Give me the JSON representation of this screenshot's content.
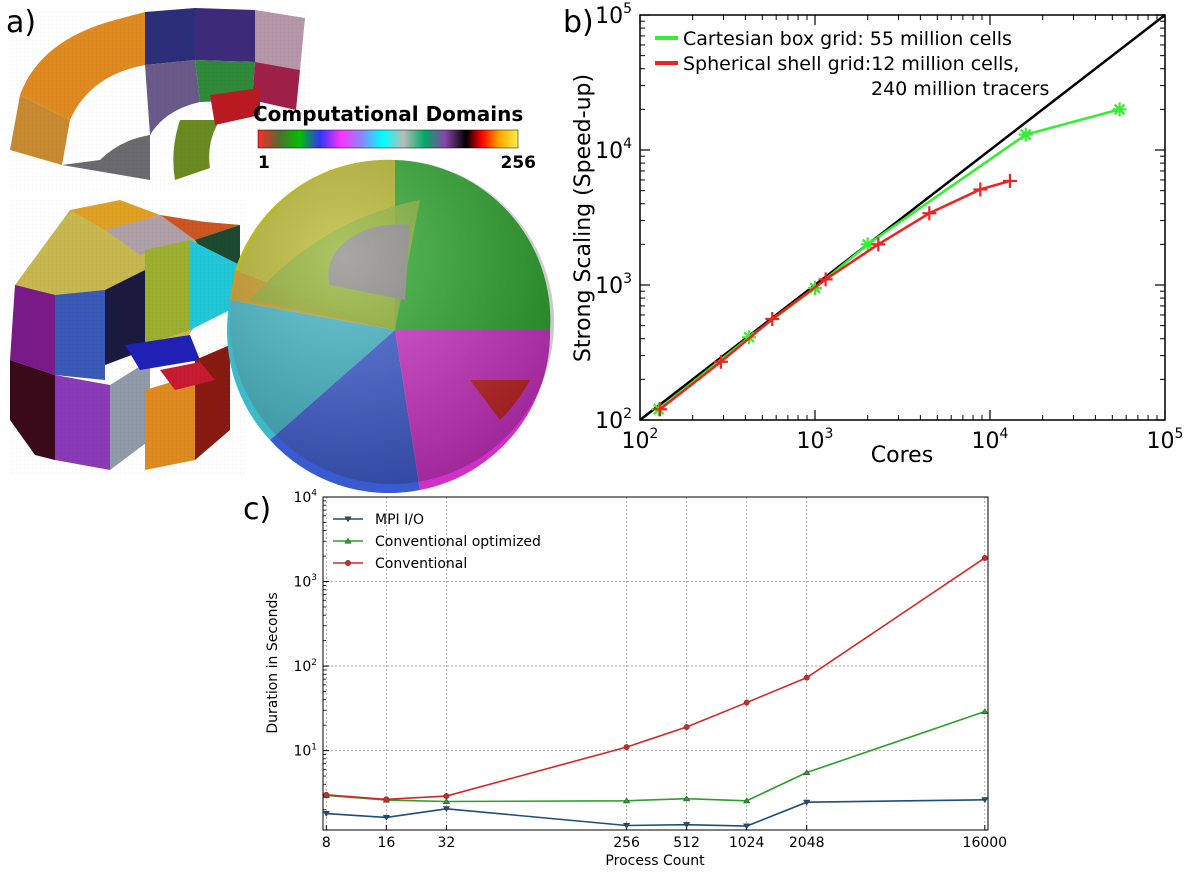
{
  "panels": {
    "a": "a)",
    "b": "b)",
    "c": "c)"
  },
  "domains_colorbar": {
    "title": "Computational Domains",
    "min_label": "1",
    "max_label": "256"
  },
  "chart_data": [
    {
      "type": "line",
      "panel": "b",
      "xlabel": "Cores",
      "ylabel": "Strong Scaling (Speed-up)",
      "xscale": "log",
      "yscale": "log",
      "xlim": [
        100,
        100000
      ],
      "ylim": [
        100,
        100000
      ],
      "xticks": [
        {
          "value": 100,
          "base": "10",
          "exp": "2"
        },
        {
          "value": 1000,
          "base": "10",
          "exp": "3"
        },
        {
          "value": 10000,
          "base": "10",
          "exp": "4"
        },
        {
          "value": 100000,
          "base": "10",
          "exp": "5"
        }
      ],
      "yticks": [
        {
          "value": 100,
          "base": "10",
          "exp": "2"
        },
        {
          "value": 1000,
          "base": "10",
          "exp": "3"
        },
        {
          "value": 10000,
          "base": "10",
          "exp": "4"
        },
        {
          "value": 100000,
          "base": "10",
          "exp": "5"
        }
      ],
      "legend_position": "top-left",
      "ideal_line": {
        "x": [
          100,
          100000
        ],
        "y": [
          100,
          100000
        ],
        "color": "#000000"
      },
      "series": [
        {
          "name": "Cartesian box grid: 55 million cells",
          "legend_lines": [
            "Cartesian box grid: 55 million cells"
          ],
          "color": "#33ee33",
          "marker": "asterisk",
          "x": [
            128,
            420,
            1000,
            2000,
            16000,
            55000
          ],
          "y": [
            120,
            410,
            950,
            2000,
            13000,
            20000
          ]
        },
        {
          "name": "Spherical shell grid: 12 million cells, 240 million tracers",
          "legend_lines": [
            "Spherical shell grid:12 million cells,",
            "240 million tracers"
          ],
          "color": "#ee2222",
          "marker": "plus",
          "x": [
            130,
            290,
            570,
            1150,
            2300,
            4500,
            8800,
            13000
          ],
          "y": [
            120,
            270,
            560,
            1100,
            2000,
            3400,
            5100,
            5900
          ]
        }
      ]
    },
    {
      "type": "line",
      "panel": "c",
      "xlabel": "Process Count",
      "ylabel": "Duration in Seconds",
      "yscale": "log",
      "ylim": [
        1.15,
        10000
      ],
      "categories": [
        "8",
        "16",
        "32",
        "256",
        "512",
        "1024",
        "2048",
        "16000"
      ],
      "x": [
        8,
        16,
        32,
        256,
        512,
        1024,
        2048,
        16000
      ],
      "xlim": [
        7.7,
        16600
      ],
      "yticks": [
        {
          "value": 10,
          "base": "10",
          "exp": "1"
        },
        {
          "value": 100,
          "base": "10",
          "exp": "2"
        },
        {
          "value": 1000,
          "base": "10",
          "exp": "3"
        },
        {
          "value": 10000,
          "base": "10",
          "exp": "4"
        }
      ],
      "grid": true,
      "legend_position": "top-left",
      "series": [
        {
          "name": "MPI I/O",
          "color": "#1f4e79",
          "marker": "triangle-down",
          "values": [
            1.8,
            1.62,
            2.05,
            1.3,
            1.33,
            1.28,
            2.45,
            2.62
          ]
        },
        {
          "name": "Conventional optimized",
          "color": "#2ca02c",
          "marker": "triangle-up",
          "values": [
            2.95,
            2.6,
            2.5,
            2.55,
            2.7,
            2.55,
            5.5,
            29
          ]
        },
        {
          "name": "Conventional",
          "color": "#d62728",
          "marker": "circle",
          "values": [
            3.0,
            2.65,
            2.9,
            11,
            19,
            37,
            73,
            1900
          ]
        }
      ]
    }
  ]
}
